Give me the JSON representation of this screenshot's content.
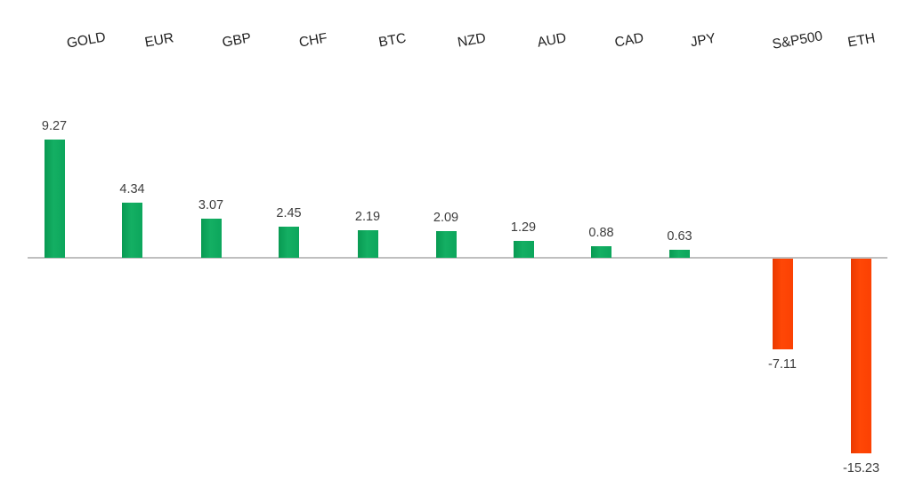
{
  "chart_data": {
    "type": "bar",
    "title": "",
    "xlabel": "",
    "ylabel": "",
    "categories": [
      "GOLD",
      "EUR",
      "GBP",
      "CHF",
      "BTC",
      "NZD",
      "AUD",
      "CAD",
      "JPY",
      "S&P500",
      "ETH"
    ],
    "values": [
      9.27,
      4.34,
      3.07,
      2.45,
      2.19,
      2.09,
      1.29,
      0.88,
      0.63,
      -7.11,
      -15.23
    ],
    "value_labels": [
      "9.27",
      "4.34",
      "3.07",
      "2.45",
      "2.19",
      "2.09",
      "1.29",
      "0.88",
      "0.63",
      "-7.11",
      "-15.23"
    ],
    "series_colors": {
      "positive": "#0BA55B",
      "negative": "#FB4103"
    },
    "axis_line_color": "#BFBFBF",
    "value_text_color": "#3D3D3D",
    "category_text_color": "#1F1F1F",
    "ylim": [
      -16,
      10
    ],
    "baseline": 0,
    "gridlines": false,
    "legend_position": "none",
    "category_label_position": "top",
    "category_label_rotation_deg": -10
  }
}
